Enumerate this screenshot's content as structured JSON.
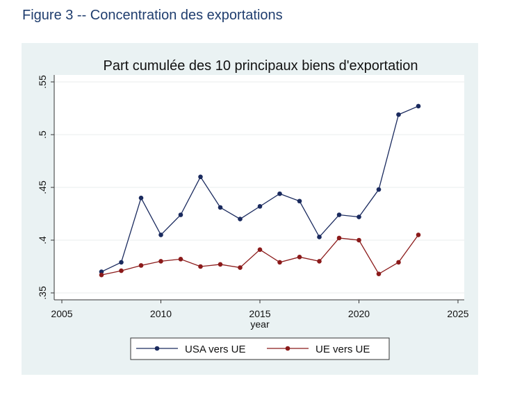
{
  "figure_title": "Figure 3 -- Concentration des exportations",
  "chart_data": {
    "type": "line",
    "title": "Part cumulée des 10 principaux biens d'exportation",
    "xlabel": "year",
    "ylabel": "",
    "xlim": [
      2005,
      2025
    ],
    "ylim": [
      0.35,
      0.55
    ],
    "xticks": [
      2005,
      2010,
      2015,
      2020,
      2025
    ],
    "yticks": [
      0.35,
      0.4,
      0.45,
      0.5,
      0.55
    ],
    "ytick_labels": [
      ".35",
      ".4",
      ".45",
      ".5",
      ".55"
    ],
    "grid": true,
    "legend_position": "bottom",
    "x": [
      2007,
      2008,
      2009,
      2010,
      2011,
      2012,
      2013,
      2014,
      2015,
      2016,
      2017,
      2018,
      2019,
      2020,
      2021,
      2022,
      2023
    ],
    "series": [
      {
        "name": "USA vers UE",
        "color": "#1a2a5e",
        "values": [
          0.37,
          0.379,
          0.44,
          0.405,
          0.424,
          0.46,
          0.431,
          0.42,
          0.432,
          0.444,
          0.437,
          0.403,
          0.424,
          0.422,
          0.448,
          0.519,
          0.527
        ]
      },
      {
        "name": "UE vers UE",
        "color": "#8b1a1a",
        "values": [
          0.367,
          0.371,
          0.376,
          0.38,
          0.382,
          0.375,
          0.377,
          0.374,
          0.391,
          0.379,
          0.384,
          0.38,
          0.402,
          0.4,
          0.368,
          0.379,
          0.405
        ]
      }
    ]
  }
}
